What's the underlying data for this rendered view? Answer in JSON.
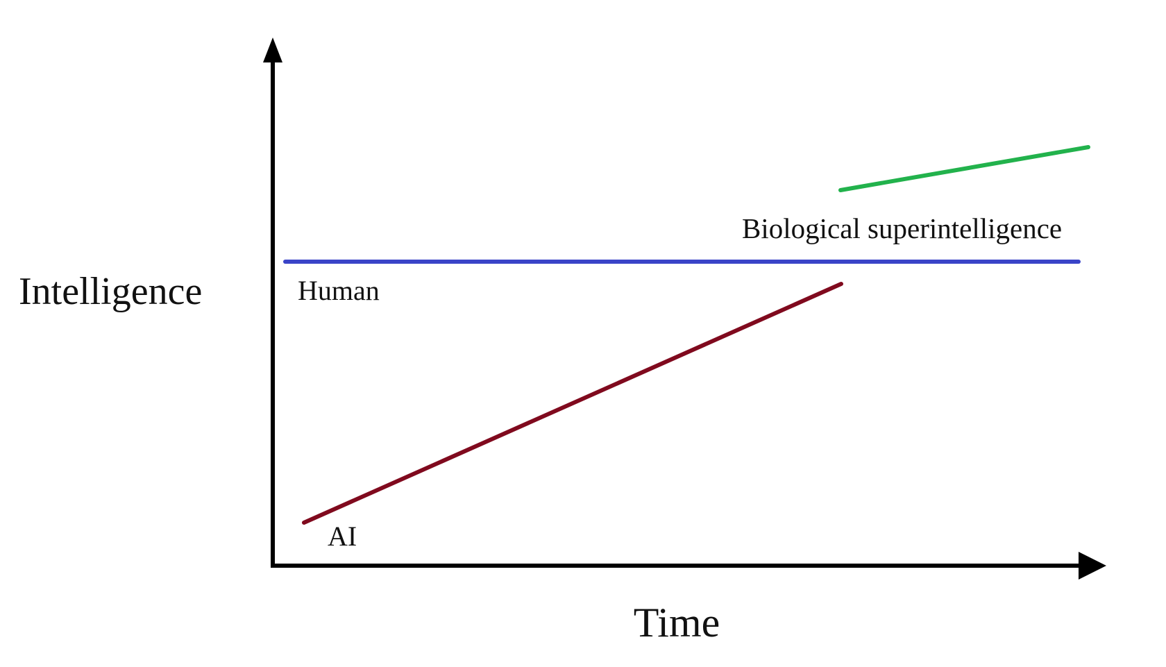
{
  "axes": {
    "y_label": "Intelligence",
    "x_label": "Time"
  },
  "lines": [
    {
      "label": "Human",
      "color": "#3a44c8"
    },
    {
      "label": "AI",
      "color": "#800a1e"
    },
    {
      "label": "Biological superintelligence",
      "color": "#22b24c"
    }
  ]
}
